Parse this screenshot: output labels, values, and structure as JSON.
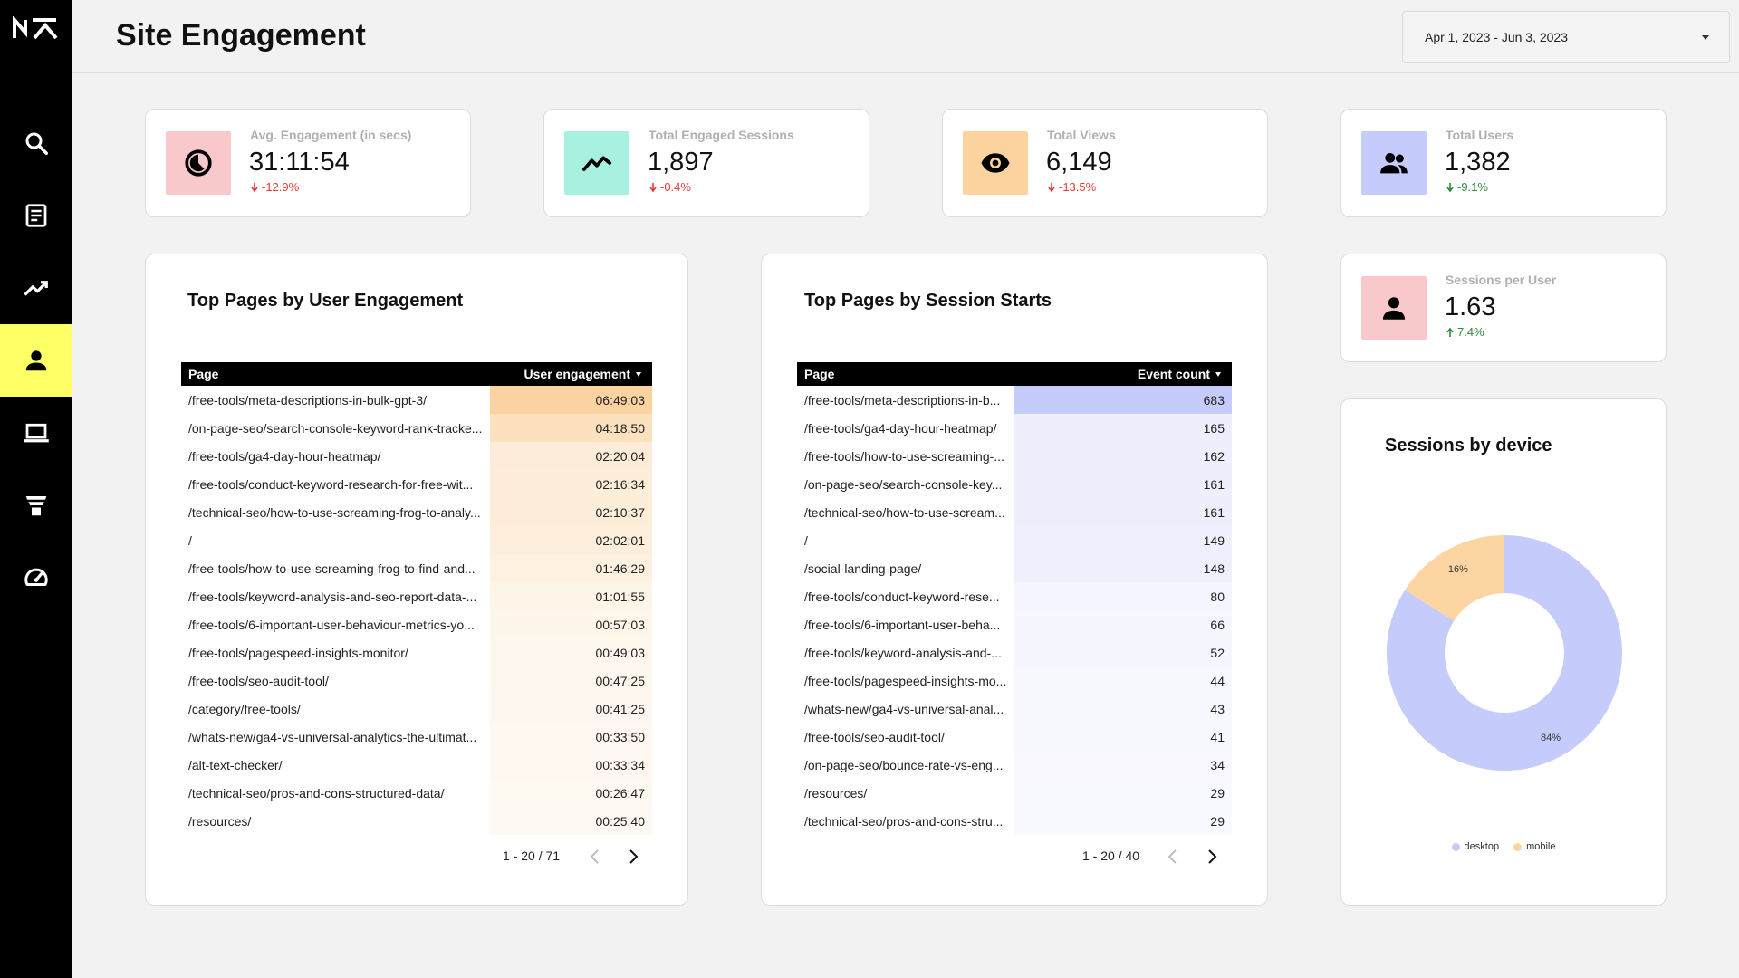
{
  "app": {
    "title": "Site Engagement"
  },
  "colors": {
    "accent": "#ffff66",
    "sidebar": "#000000",
    "desktop": "#c5cbfa",
    "mobile": "#fdd5a3",
    "down": "#e53935",
    "green": "#2e8b3a"
  },
  "nav": [
    {
      "icon": "logo"
    },
    {
      "icon": "search-icon"
    },
    {
      "icon": "document-icon"
    },
    {
      "icon": "trend-icon"
    },
    {
      "icon": "person-icon",
      "active": true
    },
    {
      "icon": "laptop-icon"
    },
    {
      "icon": "funnel-icon"
    },
    {
      "icon": "speedometer-icon"
    }
  ],
  "date_range": {
    "label": "Apr 1, 2023 - Jun 3, 2023"
  },
  "kpis": [
    {
      "label": "Avg. Engagement (in secs)",
      "value": "31:11:54",
      "delta": "-12.9%",
      "icon": "clock-icon",
      "icon_bg": "#f9c8cb"
    },
    {
      "label": "Total Engaged Sessions",
      "value": "1,897",
      "delta": "-0.4%",
      "icon": "trend-icon",
      "icon_bg": "#a8f0df"
    },
    {
      "label": "Total Views",
      "value": "6,149",
      "delta": "-13.5%",
      "icon": "eye-icon",
      "icon_bg": "#fdd3a0"
    },
    {
      "label": "Total Users",
      "value": "1,382",
      "delta": "-9.1%",
      "icon": "people-icon",
      "icon_bg": "#c5cbfa"
    },
    {
      "label": "Sessions per User",
      "value": "1.63",
      "delta": "7.4%",
      "icon": "person-icon",
      "icon_bg": "#f9c8cb"
    }
  ],
  "engagement_table": {
    "title": "Top Pages by User Engagement",
    "col_page": "Page",
    "col_metric": "User engagement",
    "rows": [
      {
        "page": "/free-tools/meta-descriptions-in-bulk-gpt-3/",
        "value": "06:49:03",
        "level": 1.0
      },
      {
        "page": "/on-page-seo/search-console-keyword-rank-tracke...",
        "value": "04:18:50",
        "level": 0.65
      },
      {
        "page": "/free-tools/ga4-day-hour-heatmap/",
        "value": "02:20:04",
        "level": 0.36
      },
      {
        "page": "/free-tools/conduct-keyword-research-for-free-wit...",
        "value": "02:16:34",
        "level": 0.34
      },
      {
        "page": "/technical-seo/how-to-use-screaming-frog-to-analy...",
        "value": "02:10:37",
        "level": 0.33
      },
      {
        "page": "/",
        "value": "02:02:01",
        "level": 0.31
      },
      {
        "page": "/free-tools/how-to-use-screaming-frog-to-find-and...",
        "value": "01:46:29",
        "level": 0.27
      },
      {
        "page": "/free-tools/keyword-analysis-and-seo-report-data-...",
        "value": "01:01:55",
        "level": 0.16
      },
      {
        "page": "/free-tools/6-important-user-behaviour-metrics-yo...",
        "value": "00:57:03",
        "level": 0.14
      },
      {
        "page": "/free-tools/pagespeed-insights-monitor/",
        "value": "00:49:03",
        "level": 0.12
      },
      {
        "page": "/free-tools/seo-audit-tool/",
        "value": "00:47:25",
        "level": 0.12
      },
      {
        "page": "/category/free-tools/",
        "value": "00:41:25",
        "level": 0.1
      },
      {
        "page": "/whats-new/ga4-vs-universal-analytics-the-ultimat...",
        "value": "00:33:50",
        "level": 0.08
      },
      {
        "page": "/alt-text-checker/",
        "value": "00:33:34",
        "level": 0.08
      },
      {
        "page": "/technical-seo/pros-and-cons-structured-data/",
        "value": "00:26:47",
        "level": 0.07
      },
      {
        "page": "/resources/",
        "value": "00:25:40",
        "level": 0.06
      }
    ],
    "pagination": "1 - 20 / 71"
  },
  "session_table": {
    "title": "Top Pages by Session Starts",
    "col_page": "Page",
    "col_metric": "Event count",
    "rows": [
      {
        "page": "/free-tools/meta-descriptions-in-b...",
        "value": "683",
        "level": 1.0
      },
      {
        "page": "/free-tools/ga4-day-hour-heatmap/",
        "value": "165",
        "level": 0.24
      },
      {
        "page": "/free-tools/how-to-use-screaming-...",
        "value": "162",
        "level": 0.24
      },
      {
        "page": "/on-page-seo/search-console-key...",
        "value": "161",
        "level": 0.24
      },
      {
        "page": "/technical-seo/how-to-use-scream...",
        "value": "161",
        "level": 0.24
      },
      {
        "page": "/",
        "value": "149",
        "level": 0.22
      },
      {
        "page": "/social-landing-page/",
        "value": "148",
        "level": 0.22
      },
      {
        "page": "/free-tools/conduct-keyword-rese...",
        "value": "80",
        "level": 0.12
      },
      {
        "page": "/free-tools/6-important-user-beha...",
        "value": "66",
        "level": 0.1
      },
      {
        "page": "/free-tools/keyword-analysis-and-...",
        "value": "52",
        "level": 0.08
      },
      {
        "page": "/free-tools/pagespeed-insights-mo...",
        "value": "44",
        "level": 0.06
      },
      {
        "page": "/whats-new/ga4-vs-universal-anal...",
        "value": "43",
        "level": 0.06
      },
      {
        "page": "/free-tools/seo-audit-tool/",
        "value": "41",
        "level": 0.06
      },
      {
        "page": "/on-page-seo/bounce-rate-vs-eng...",
        "value": "34",
        "level": 0.05
      },
      {
        "page": "/resources/",
        "value": "29",
        "level": 0.04
      },
      {
        "page": "/technical-seo/pros-and-cons-stru...",
        "value": "29",
        "level": 0.04
      }
    ],
    "pagination": "1 - 20 / 40"
  },
  "chart_data": {
    "type": "pie",
    "title": "Sessions by device",
    "categories": [
      "desktop",
      "mobile"
    ],
    "values": [
      84,
      16
    ],
    "labels": [
      "84%",
      "16%"
    ],
    "colors": [
      "#c5cbfa",
      "#fdd5a3"
    ],
    "donut": true,
    "legend": "bottom"
  }
}
